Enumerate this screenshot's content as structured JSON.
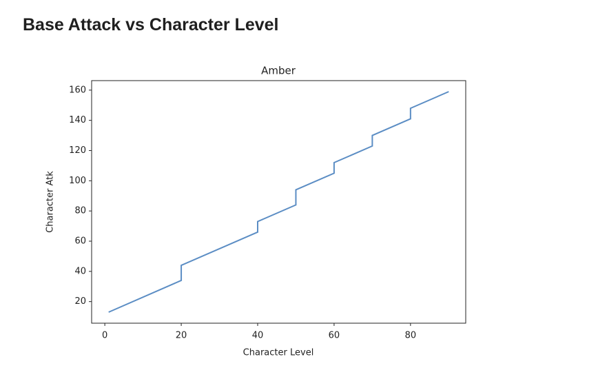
{
  "header": {
    "title": "Base Attack vs Character Level"
  },
  "chart_data": {
    "type": "line",
    "title": "Amber",
    "x_label": "Character Level",
    "y_label": "Character Atk",
    "series": [
      {
        "name": "Amber",
        "color": "#5b8dc4",
        "x": [
          1,
          20,
          20,
          40,
          40,
          50,
          50,
          60,
          60,
          70,
          70,
          80,
          80,
          90
        ],
        "values": [
          13,
          34,
          44,
          66,
          73,
          84,
          94,
          105,
          112,
          123,
          130,
          141,
          148,
          159
        ]
      }
    ],
    "xlim": [
      -3.45,
      94.45
    ],
    "xticks": [
      0,
      20,
      40,
      60,
      80
    ],
    "ylim": [
      5.7,
      166.3
    ],
    "yticks": [
      20,
      40,
      60,
      80,
      100,
      120,
      140,
      160
    ],
    "grid": false
  }
}
